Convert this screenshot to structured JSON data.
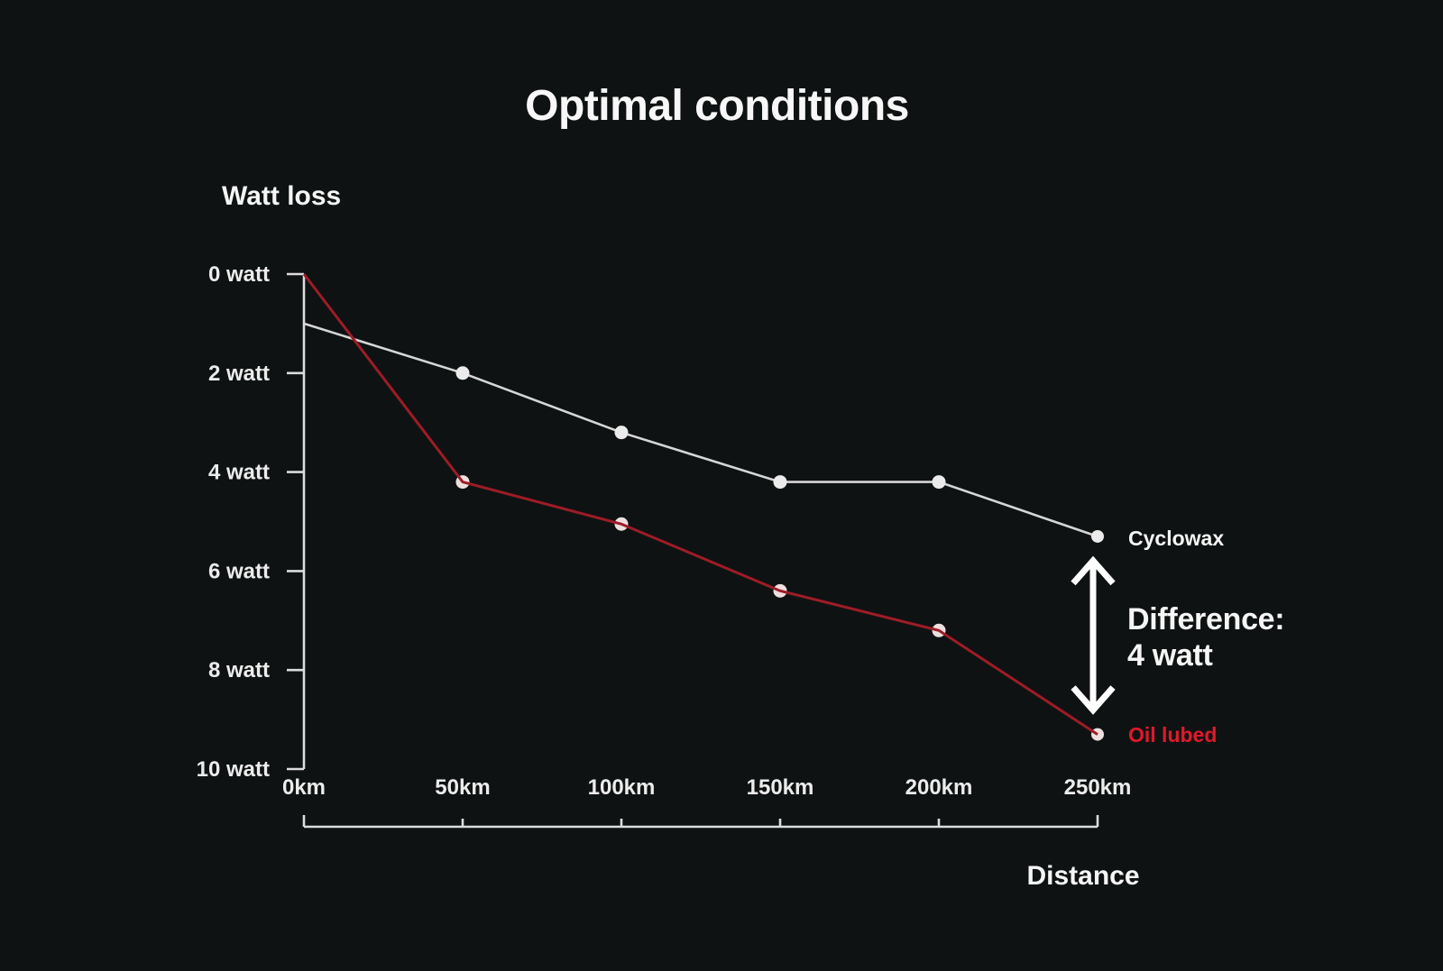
{
  "chart_data": {
    "type": "line",
    "title": "Optimal conditions",
    "ylabel": "Watt loss",
    "xlabel": "Distance",
    "x_km": [
      0,
      50,
      100,
      150,
      200,
      250
    ],
    "x_tick_labels": [
      "0km",
      "50km",
      "100km",
      "150km",
      "200km",
      "250km"
    ],
    "y_ticks_watt": [
      0,
      2,
      4,
      6,
      8,
      10
    ],
    "y_tick_labels": [
      "0 watt",
      "2 watt",
      "4 watt",
      "6 watt",
      "8 watt",
      "10 watt"
    ],
    "ylim": [
      0,
      10
    ],
    "y_axis_direction": "inverted: 0 watt at top, watt loss increases downward",
    "grid": false,
    "legend_position": "right of last data points",
    "series": [
      {
        "name": "Cyclowax",
        "line_color": "#d6d6d6",
        "point_color": "#ebebeb",
        "label_color": "#f5f5f5",
        "values_watt": [
          1.0,
          2.0,
          3.2,
          4.2,
          4.2,
          5.3
        ]
      },
      {
        "name": "Oil lubed",
        "line_color": "#9d1c27",
        "point_color": "#eedfdf",
        "label_color": "#e0192b",
        "values_watt": [
          0.0,
          4.2,
          5.05,
          6.4,
          7.2,
          9.3
        ]
      }
    ],
    "annotation": {
      "line1": "Difference:",
      "line2": "4 watt",
      "at_x_km": 250,
      "between_watt": [
        5.3,
        9.3
      ],
      "arrow": "double-headed vertical arrow",
      "arrow_color": "#ffffff"
    },
    "colors": {
      "background": "#0f1212",
      "axis": "#dcdcdc",
      "tick_label": "#ececec"
    }
  }
}
